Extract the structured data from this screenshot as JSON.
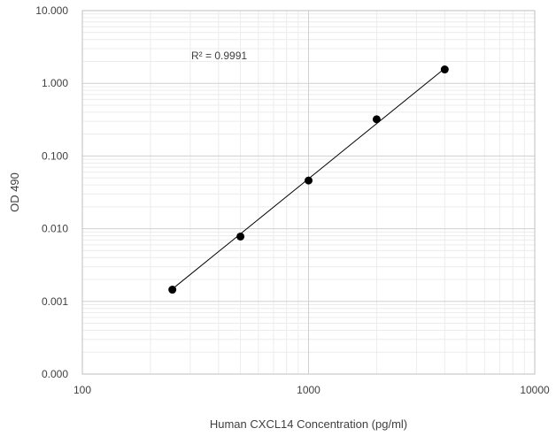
{
  "chart_data": {
    "type": "scatter",
    "xlabel": "Human CXCL14 Concentration (pg/ml)",
    "ylabel": "OD 490",
    "x_scale": "log",
    "y_scale": "log",
    "xlim": [
      100,
      10000
    ],
    "ylim": [
      0.0001,
      10
    ],
    "x_ticks": [
      100,
      1000,
      10000
    ],
    "x_tick_labels": [
      "100",
      "1000",
      "10000"
    ],
    "y_ticks": [
      0.0001,
      0.001,
      0.01,
      0.1,
      1,
      10
    ],
    "y_tick_labels": [
      "0.000",
      "0.001",
      "0.010",
      "0.100",
      "1.000",
      "10.000"
    ],
    "grid": true,
    "legend": "none",
    "series": [
      {
        "x": [
          250,
          500,
          1000,
          2000,
          4000
        ],
        "y": [
          0.00145,
          0.0078,
          0.046,
          0.32,
          1.55
        ]
      }
    ],
    "trendline": {
      "type": "power",
      "x_range": [
        250,
        4000
      ],
      "y_range": [
        0.00148,
        1.6
      ],
      "r_squared_label": "R² = 0.9991"
    },
    "colors": {
      "marker": "#000000",
      "trendline": "#000000",
      "major_grid": "#d0d0d0",
      "minor_grid": "#ececec",
      "plot_border": "#bfbfbf",
      "text": "#404040"
    }
  }
}
